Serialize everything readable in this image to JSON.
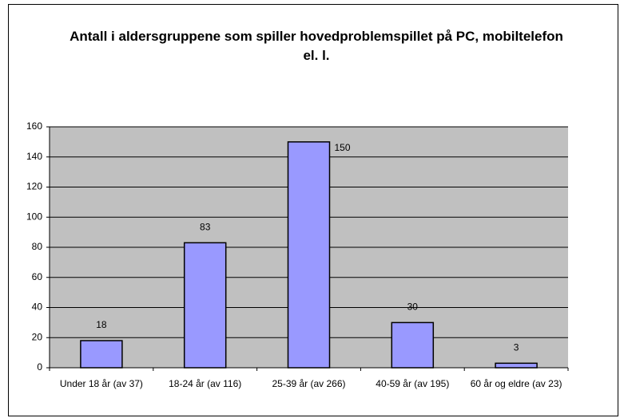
{
  "chart_data": {
    "type": "bar",
    "title": "Antall i aldersgruppene som spiller hovedproblemspillet på PC, mobiltelefon el. l.",
    "categories": [
      "Under 18 år (av 37)",
      "18-24 år (av 116)",
      "25-39 år (av 266)",
      "40-59 år (av 195)",
      "60 år og eldre (av 23)"
    ],
    "values": [
      18,
      83,
      150,
      30,
      3
    ],
    "color": "#9999ff",
    "ylim": [
      0,
      160
    ],
    "yticks": [
      0,
      20,
      40,
      60,
      80,
      100,
      120,
      140,
      160
    ],
    "grid": true
  }
}
